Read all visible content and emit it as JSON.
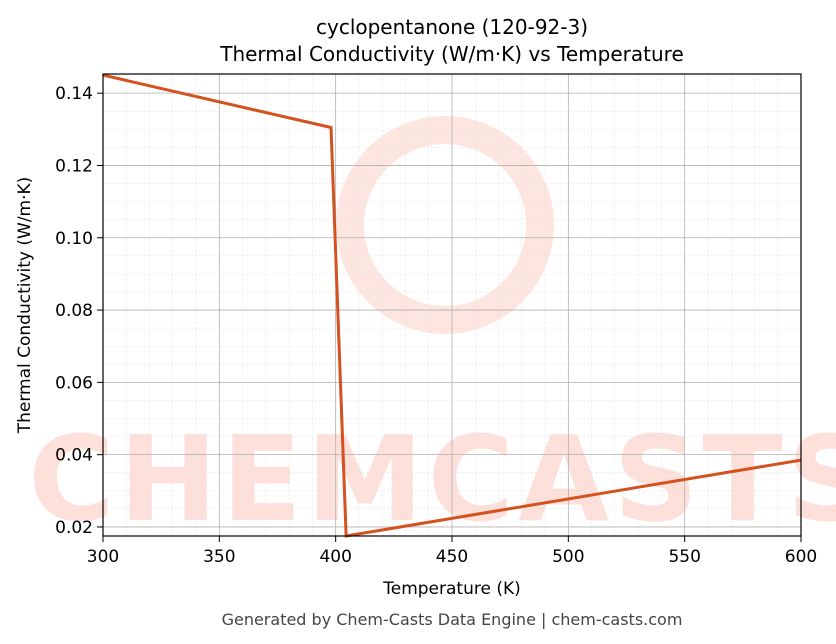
{
  "chart_data": {
    "type": "line",
    "title": "cyclopentanone (120-92-3)",
    "subtitle": "Thermal Conductivity (W/m·K) vs Temperature",
    "x_label": "Temperature (K)",
    "y_label": "Thermal Conductivity (W/m·K)",
    "footer": "Generated by Chem-Casts Data Engine | chem-casts.com",
    "watermark": "CHEMCASTS",
    "x": [
      300,
      398,
      404.5,
      600
    ],
    "series": [
      {
        "color": "#d4521f",
        "values": [
          0.145,
          0.1305,
          0.0175,
          0.0385
        ]
      }
    ],
    "xlim": [
      300,
      600
    ],
    "xticks": [
      300,
      350,
      400,
      450,
      500,
      550,
      600
    ],
    "ylim": [
      0.0175,
      0.1453
    ],
    "yticks": [
      0.02,
      0.04,
      0.06,
      0.08,
      {
        "value": 0.1,
        "label": "0.10"
      },
      0.12,
      0.14
    ],
    "grid": true
  }
}
